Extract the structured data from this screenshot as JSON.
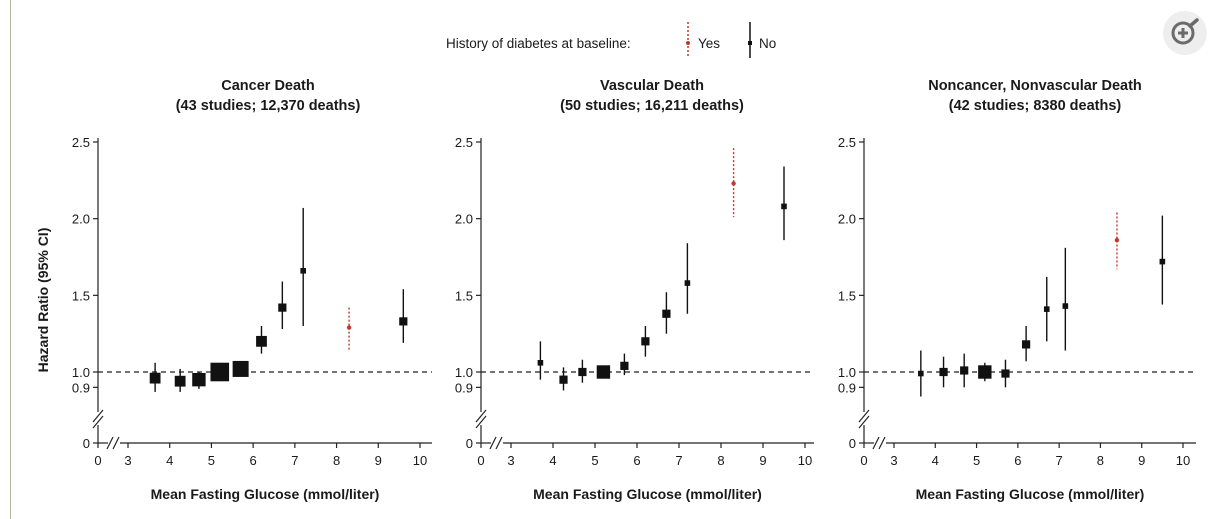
{
  "legend": {
    "title": "History of diabetes at baseline:",
    "yes_label": "Yes",
    "no_label": "No",
    "yes_color": "#c0392b",
    "no_color": "#111111"
  },
  "y_axis_label": "Hazard Ratio (95% CI)",
  "zoom_icon": "zoom-in-icon",
  "chart_data": [
    {
      "type": "scatter",
      "title_line1": "Cancer Death",
      "title_line2": "(43 studies; 12,370 deaths)",
      "xlabel": "Mean Fasting Glucose (mmol/liter)",
      "ylabel": "Hazard Ratio (95% CI)",
      "x_ticks": [
        0,
        3,
        4,
        5,
        6,
        7,
        8,
        9,
        10
      ],
      "y_ticks": [
        0,
        0.9,
        1.0,
        1.5,
        2.0,
        2.5
      ],
      "x_tick_labels": [
        "0",
        "3",
        "4",
        "5",
        "6",
        "7",
        "8",
        "9",
        "10"
      ],
      "y_tick_labels": [
        "0",
        "0.9",
        "1.0",
        "1.5",
        "2.0",
        "2.5"
      ],
      "reference_line": 1.0,
      "axis_break": true,
      "series": [
        {
          "name": "No",
          "points": [
            {
              "x": 3.65,
              "hr": 0.96,
              "lo": 0.87,
              "hi": 1.06,
              "weight": 3
            },
            {
              "x": 4.25,
              "hr": 0.94,
              "lo": 0.87,
              "hi": 1.02,
              "weight": 3
            },
            {
              "x": 4.7,
              "hr": 0.95,
              "lo": 0.89,
              "hi": 1.0,
              "weight": 4
            },
            {
              "x": 5.2,
              "hr": 1.0,
              "lo": 0.95,
              "hi": 1.05,
              "weight": 6
            },
            {
              "x": 5.7,
              "hr": 1.02,
              "lo": 0.98,
              "hi": 1.07,
              "weight": 5
            },
            {
              "x": 6.2,
              "hr": 1.2,
              "lo": 1.12,
              "hi": 1.3,
              "weight": 3
            },
            {
              "x": 6.7,
              "hr": 1.42,
              "lo": 1.28,
              "hi": 1.59,
              "weight": 2
            },
            {
              "x": 7.2,
              "hr": 1.66,
              "lo": 1.3,
              "hi": 2.07,
              "weight": 1
            },
            {
              "x": 9.6,
              "hr": 1.33,
              "lo": 1.19,
              "hi": 1.54,
              "weight": 2
            }
          ]
        },
        {
          "name": "Yes",
          "points": [
            {
              "x": 8.3,
              "hr": 1.29,
              "lo": 1.14,
              "hi": 1.42,
              "weight": 1
            }
          ]
        }
      ]
    },
    {
      "type": "scatter",
      "title_line1": "Vascular Death",
      "title_line2": "(50 studies; 16,211 deaths)",
      "xlabel": "Mean Fasting Glucose (mmol/liter)",
      "ylabel": "Hazard Ratio (95% CI)",
      "x_ticks": [
        0,
        3,
        4,
        5,
        6,
        7,
        8,
        9,
        10
      ],
      "y_ticks": [
        0,
        0.9,
        1.0,
        1.5,
        2.0,
        2.5
      ],
      "x_tick_labels": [
        "0",
        "3",
        "4",
        "5",
        "6",
        "7",
        "8",
        "9",
        "10"
      ],
      "y_tick_labels": [
        "0",
        "0.9",
        "1.0",
        "1.5",
        "2.0",
        "2.5"
      ],
      "reference_line": 1.0,
      "axis_break": true,
      "series": [
        {
          "name": "No",
          "points": [
            {
              "x": 3.7,
              "hr": 1.06,
              "lo": 0.95,
              "hi": 1.2,
              "weight": 1
            },
            {
              "x": 4.25,
              "hr": 0.95,
              "lo": 0.88,
              "hi": 1.03,
              "weight": 2
            },
            {
              "x": 4.7,
              "hr": 1.0,
              "lo": 0.93,
              "hi": 1.08,
              "weight": 2
            },
            {
              "x": 5.2,
              "hr": 1.0,
              "lo": 0.96,
              "hi": 1.04,
              "weight": 4
            },
            {
              "x": 5.7,
              "hr": 1.04,
              "lo": 0.98,
              "hi": 1.12,
              "weight": 2
            },
            {
              "x": 6.2,
              "hr": 1.2,
              "lo": 1.1,
              "hi": 1.3,
              "weight": 2
            },
            {
              "x": 6.7,
              "hr": 1.38,
              "lo": 1.25,
              "hi": 1.52,
              "weight": 2
            },
            {
              "x": 7.2,
              "hr": 1.58,
              "lo": 1.38,
              "hi": 1.84,
              "weight": 1
            },
            {
              "x": 9.5,
              "hr": 2.08,
              "lo": 1.86,
              "hi": 2.34,
              "weight": 1
            }
          ]
        },
        {
          "name": "Yes",
          "points": [
            {
              "x": 8.3,
              "hr": 2.23,
              "lo": 2.01,
              "hi": 2.46,
              "weight": 1
            }
          ]
        }
      ]
    },
    {
      "type": "scatter",
      "title_line1": "Noncancer, Nonvascular Death",
      "title_line2": "(42 studies; 8380 deaths)",
      "xlabel": "Mean Fasting Glucose (mmol/liter)",
      "ylabel": "Hazard Ratio (95% CI)",
      "x_ticks": [
        0,
        3,
        4,
        5,
        6,
        7,
        8,
        9,
        10
      ],
      "y_ticks": [
        0,
        0.9,
        1.0,
        1.5,
        2.0,
        2.5
      ],
      "x_tick_labels": [
        "0",
        "3",
        "4",
        "5",
        "6",
        "7",
        "8",
        "9",
        "10"
      ],
      "y_tick_labels": [
        "0",
        "0.9",
        "1.0",
        "1.5",
        "2.0",
        "2.5"
      ],
      "reference_line": 1.0,
      "axis_break": true,
      "series": [
        {
          "name": "No",
          "points": [
            {
              "x": 3.65,
              "hr": 0.99,
              "lo": 0.84,
              "hi": 1.14,
              "weight": 1
            },
            {
              "x": 4.2,
              "hr": 1.0,
              "lo": 0.9,
              "hi": 1.1,
              "weight": 2
            },
            {
              "x": 4.7,
              "hr": 1.01,
              "lo": 0.9,
              "hi": 1.12,
              "weight": 2
            },
            {
              "x": 5.2,
              "hr": 1.0,
              "lo": 0.94,
              "hi": 1.06,
              "weight": 4
            },
            {
              "x": 5.7,
              "hr": 0.99,
              "lo": 0.9,
              "hi": 1.08,
              "weight": 2
            },
            {
              "x": 6.2,
              "hr": 1.18,
              "lo": 1.07,
              "hi": 1.3,
              "weight": 2
            },
            {
              "x": 6.7,
              "hr": 1.41,
              "lo": 1.2,
              "hi": 1.62,
              "weight": 1
            },
            {
              "x": 7.15,
              "hr": 1.43,
              "lo": 1.14,
              "hi": 1.81,
              "weight": 1
            },
            {
              "x": 9.5,
              "hr": 1.72,
              "lo": 1.44,
              "hi": 2.02,
              "weight": 1
            }
          ]
        },
        {
          "name": "Yes",
          "points": [
            {
              "x": 8.4,
              "hr": 1.86,
              "lo": 1.67,
              "hi": 2.04,
              "weight": 1
            }
          ]
        }
      ]
    }
  ]
}
